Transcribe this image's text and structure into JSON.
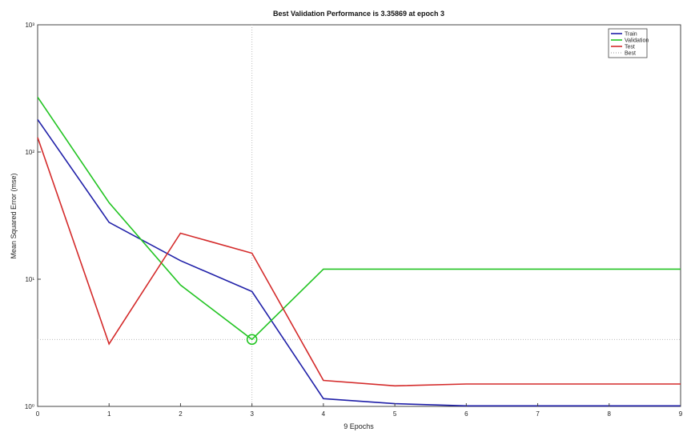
{
  "chart_data": {
    "type": "line",
    "title": "Best Validation Performance is 3.35869 at epoch 3",
    "xlabel": "9 Epochs",
    "ylabel": "Mean Squared Error  (mse)",
    "y_scale": "log",
    "xlim": [
      0,
      9
    ],
    "ylim": [
      1,
      1000
    ],
    "x_ticks": [
      "0",
      "1",
      "2",
      "3",
      "4",
      "5",
      "6",
      "7",
      "8",
      "9"
    ],
    "y_ticks": [
      {
        "value": 1,
        "label": "10⁰"
      },
      {
        "value": 10,
        "label": "10¹"
      },
      {
        "value": 100,
        "label": "10²"
      },
      {
        "value": 1000,
        "label": "10³"
      }
    ],
    "x": [
      0,
      1,
      2,
      3,
      4,
      5,
      6,
      7,
      8,
      9
    ],
    "series": [
      {
        "name": "Train",
        "color": "#1f1fa8",
        "values": [
          180,
          28,
          14,
          8,
          1.15,
          1.05,
          1.01,
          1.01,
          1.01,
          1.01
        ]
      },
      {
        "name": "Validation",
        "color": "#22c422",
        "values": [
          270,
          40,
          9,
          3.35869,
          12,
          12,
          12,
          12,
          12,
          12
        ]
      },
      {
        "name": "Test",
        "color": "#d42a2a",
        "values": [
          130,
          3.1,
          23,
          16,
          1.6,
          1.45,
          1.5,
          1.5,
          1.5,
          1.5
        ]
      }
    ],
    "best": {
      "name": "Best",
      "epoch": 3,
      "value": 3.35869,
      "color": "#bbbbbb"
    },
    "grid": false,
    "legend_position": "top-right"
  }
}
